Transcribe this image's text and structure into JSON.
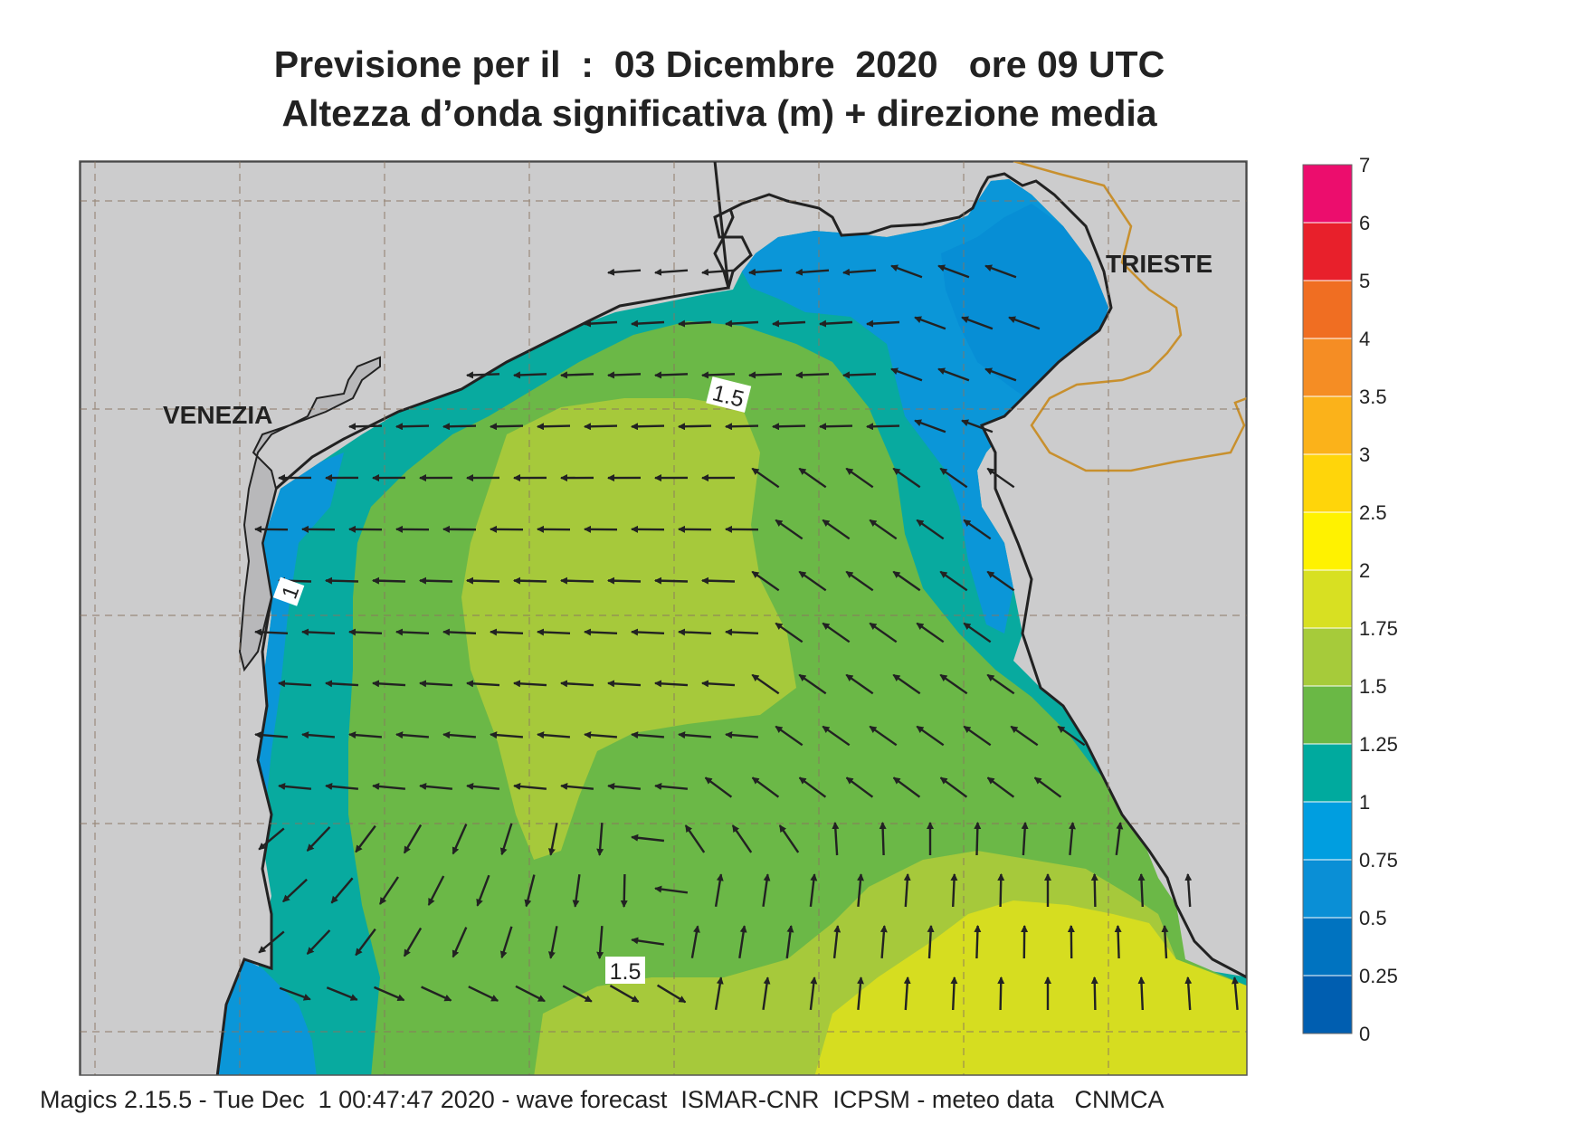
{
  "title_line1": "Previsione per il  :  03 Dicembre  2020   ore 09 UTC",
  "title_line2": "Altezza d’onda significativa (m) + direzione media",
  "place_labels": {
    "venezia": "VENEZIA",
    "trieste": "TRIESTE"
  },
  "contour_labels": {
    "upper": "1.5",
    "lower": "1.5",
    "coast": "1"
  },
  "legend": {
    "ticks": [
      "7",
      "6",
      "5",
      "4",
      "3.5",
      "3",
      "2.5",
      "2",
      "1.75",
      "1.5",
      "1.25",
      "1",
      "0.75",
      "0.5",
      "0.25",
      "0"
    ],
    "colors_top_to_bottom": [
      "#ec0d6d",
      "#e8202b",
      "#f06e22",
      "#f58d24",
      "#fbb21a",
      "#ffd50a",
      "#fff200",
      "#d8e022",
      "#a6cb3a",
      "#6ab845",
      "#00aa9e",
      "#009ee0",
      "#0a8fd6",
      "#0073c0",
      "#005eb0"
    ]
  },
  "colors": {
    "land": "#cccccd",
    "coast": "#222222",
    "border": "#c8902e",
    "wave_0_75_1": "#0b96d8",
    "wave_0_5_0_75": "#078ed5",
    "wave_1_1_25": "#08aa9f",
    "wave_1_25_1_5": "#6bb847",
    "wave_1_5_1_75": "#a6c93b",
    "wave_1_75_2": "#d6dd20"
  },
  "footer": "Magics 2.15.5 - Tue Dec  1 00:47:47 2020 - wave forecast  ISMAR-CNR  ICPSM - meteo data   CNMCA"
}
